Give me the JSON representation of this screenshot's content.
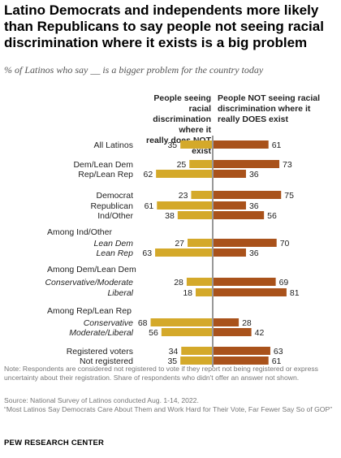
{
  "title": "Latino Democrats and independents more likely than Republicans to say people not seeing racial discrimination where it exists is a big problem",
  "subtitle": "% of Latinos who say __ is a bigger problem for the country today",
  "column_headers": {
    "left": [
      "People seeing racial",
      "discrimination where it",
      "really does NOT exist"
    ],
    "right": [
      "People NOT seeing racial",
      "discrimination where it",
      "really DOES exist"
    ]
  },
  "colors": {
    "left_bar": "#D4A92A",
    "right_bar": "#A9521B",
    "divider": "#333333"
  },
  "chart_data": {
    "type": "bar",
    "orientation": "horizontal-diverging",
    "series": [
      {
        "name": "People seeing racial discrimination where it really does NOT exist",
        "side": "left"
      },
      {
        "name": "People NOT seeing racial discrimination where it really DOES exist",
        "side": "right"
      }
    ],
    "rows": [
      {
        "label": "All Latinos",
        "italic": false,
        "left": 35,
        "right": 61
      },
      {
        "label": "Dem/Lean Dem",
        "italic": false,
        "left": 25,
        "right": 73
      },
      {
        "label": "Rep/Lean Rep",
        "italic": false,
        "left": 62,
        "right": 36
      },
      {
        "label": "Democrat",
        "italic": false,
        "left": 23,
        "right": 75
      },
      {
        "label": "Republican",
        "italic": false,
        "left": 61,
        "right": 36
      },
      {
        "label": "Ind/Other",
        "italic": false,
        "left": 38,
        "right": 56
      },
      {
        "label": "Among Ind/Other",
        "italic": false,
        "header": true
      },
      {
        "label": "Lean Dem",
        "italic": true,
        "left": 27,
        "right": 70
      },
      {
        "label": "Lean Rep",
        "italic": true,
        "left": 63,
        "right": 36
      },
      {
        "label": "Among Dem/Lean Dem",
        "italic": false,
        "header": true
      },
      {
        "label": "Conservative/Moderate",
        "italic": true,
        "left": 28,
        "right": 69
      },
      {
        "label": "Liberal",
        "italic": true,
        "left": 18,
        "right": 81
      },
      {
        "label": "Among Rep/Lean Rep",
        "italic": false,
        "header": true
      },
      {
        "label": "Conservative",
        "italic": true,
        "left": 68,
        "right": 28
      },
      {
        "label": "Moderate/Liberal",
        "italic": true,
        "left": 56,
        "right": 42
      },
      {
        "label": "Registered voters",
        "italic": false,
        "left": 34,
        "right": 63
      },
      {
        "label": "Not registered",
        "italic": false,
        "left": 35,
        "right": 61
      }
    ]
  },
  "notes": [
    "Note: Respondents are considered not registered to vote if they report not being registered or express uncertainty about their registration. Share of respondents who didn't offer an answer not shown."
  ],
  "source": [
    "Source: National Survey of Latinos conducted Aug. 1-14, 2022.",
    "“Most Latinos Say Democrats Care About Them and Work Hard for Their Vote, Far Fewer Say So of GOP”"
  ],
  "organization": "PEW RESEARCH CENTER"
}
